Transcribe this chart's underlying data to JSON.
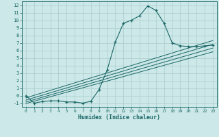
{
  "xlabel": "Humidex (Indice chaleur)",
  "bg_color": "#cce8e8",
  "grid_color": "#aacccc",
  "line_color": "#1a6666",
  "xlim": [
    -0.5,
    23.5
  ],
  "ylim": [
    -1.5,
    12.5
  ],
  "xticks": [
    0,
    1,
    2,
    3,
    4,
    5,
    6,
    7,
    8,
    9,
    10,
    11,
    12,
    13,
    14,
    15,
    16,
    17,
    18,
    19,
    20,
    21,
    22,
    23
  ],
  "yticks": [
    -1,
    0,
    1,
    2,
    3,
    4,
    5,
    6,
    7,
    8,
    9,
    10,
    11,
    12
  ],
  "main_x": [
    0,
    1,
    2,
    3,
    4,
    5,
    6,
    7,
    8,
    9,
    10,
    11,
    12,
    13,
    14,
    15,
    16,
    17,
    18,
    19,
    20,
    21,
    22,
    23
  ],
  "main_y": [
    0.0,
    -1.0,
    -0.8,
    -0.7,
    -0.7,
    -0.85,
    -0.85,
    -1.0,
    -0.75,
    0.8,
    3.4,
    7.1,
    9.6,
    10.0,
    10.6,
    11.9,
    11.3,
    9.6,
    7.0,
    6.6,
    6.5,
    6.5,
    6.6,
    6.7
  ],
  "line1_x": [
    0,
    23
  ],
  "line1_y": [
    -0.6,
    6.8
  ],
  "line2_x": [
    0,
    23
  ],
  "line2_y": [
    -0.85,
    6.3
  ],
  "line3_x": [
    0,
    23
  ],
  "line3_y": [
    -1.05,
    5.8
  ],
  "line4_x": [
    0,
    23
  ],
  "line4_y": [
    -0.3,
    7.3
  ]
}
